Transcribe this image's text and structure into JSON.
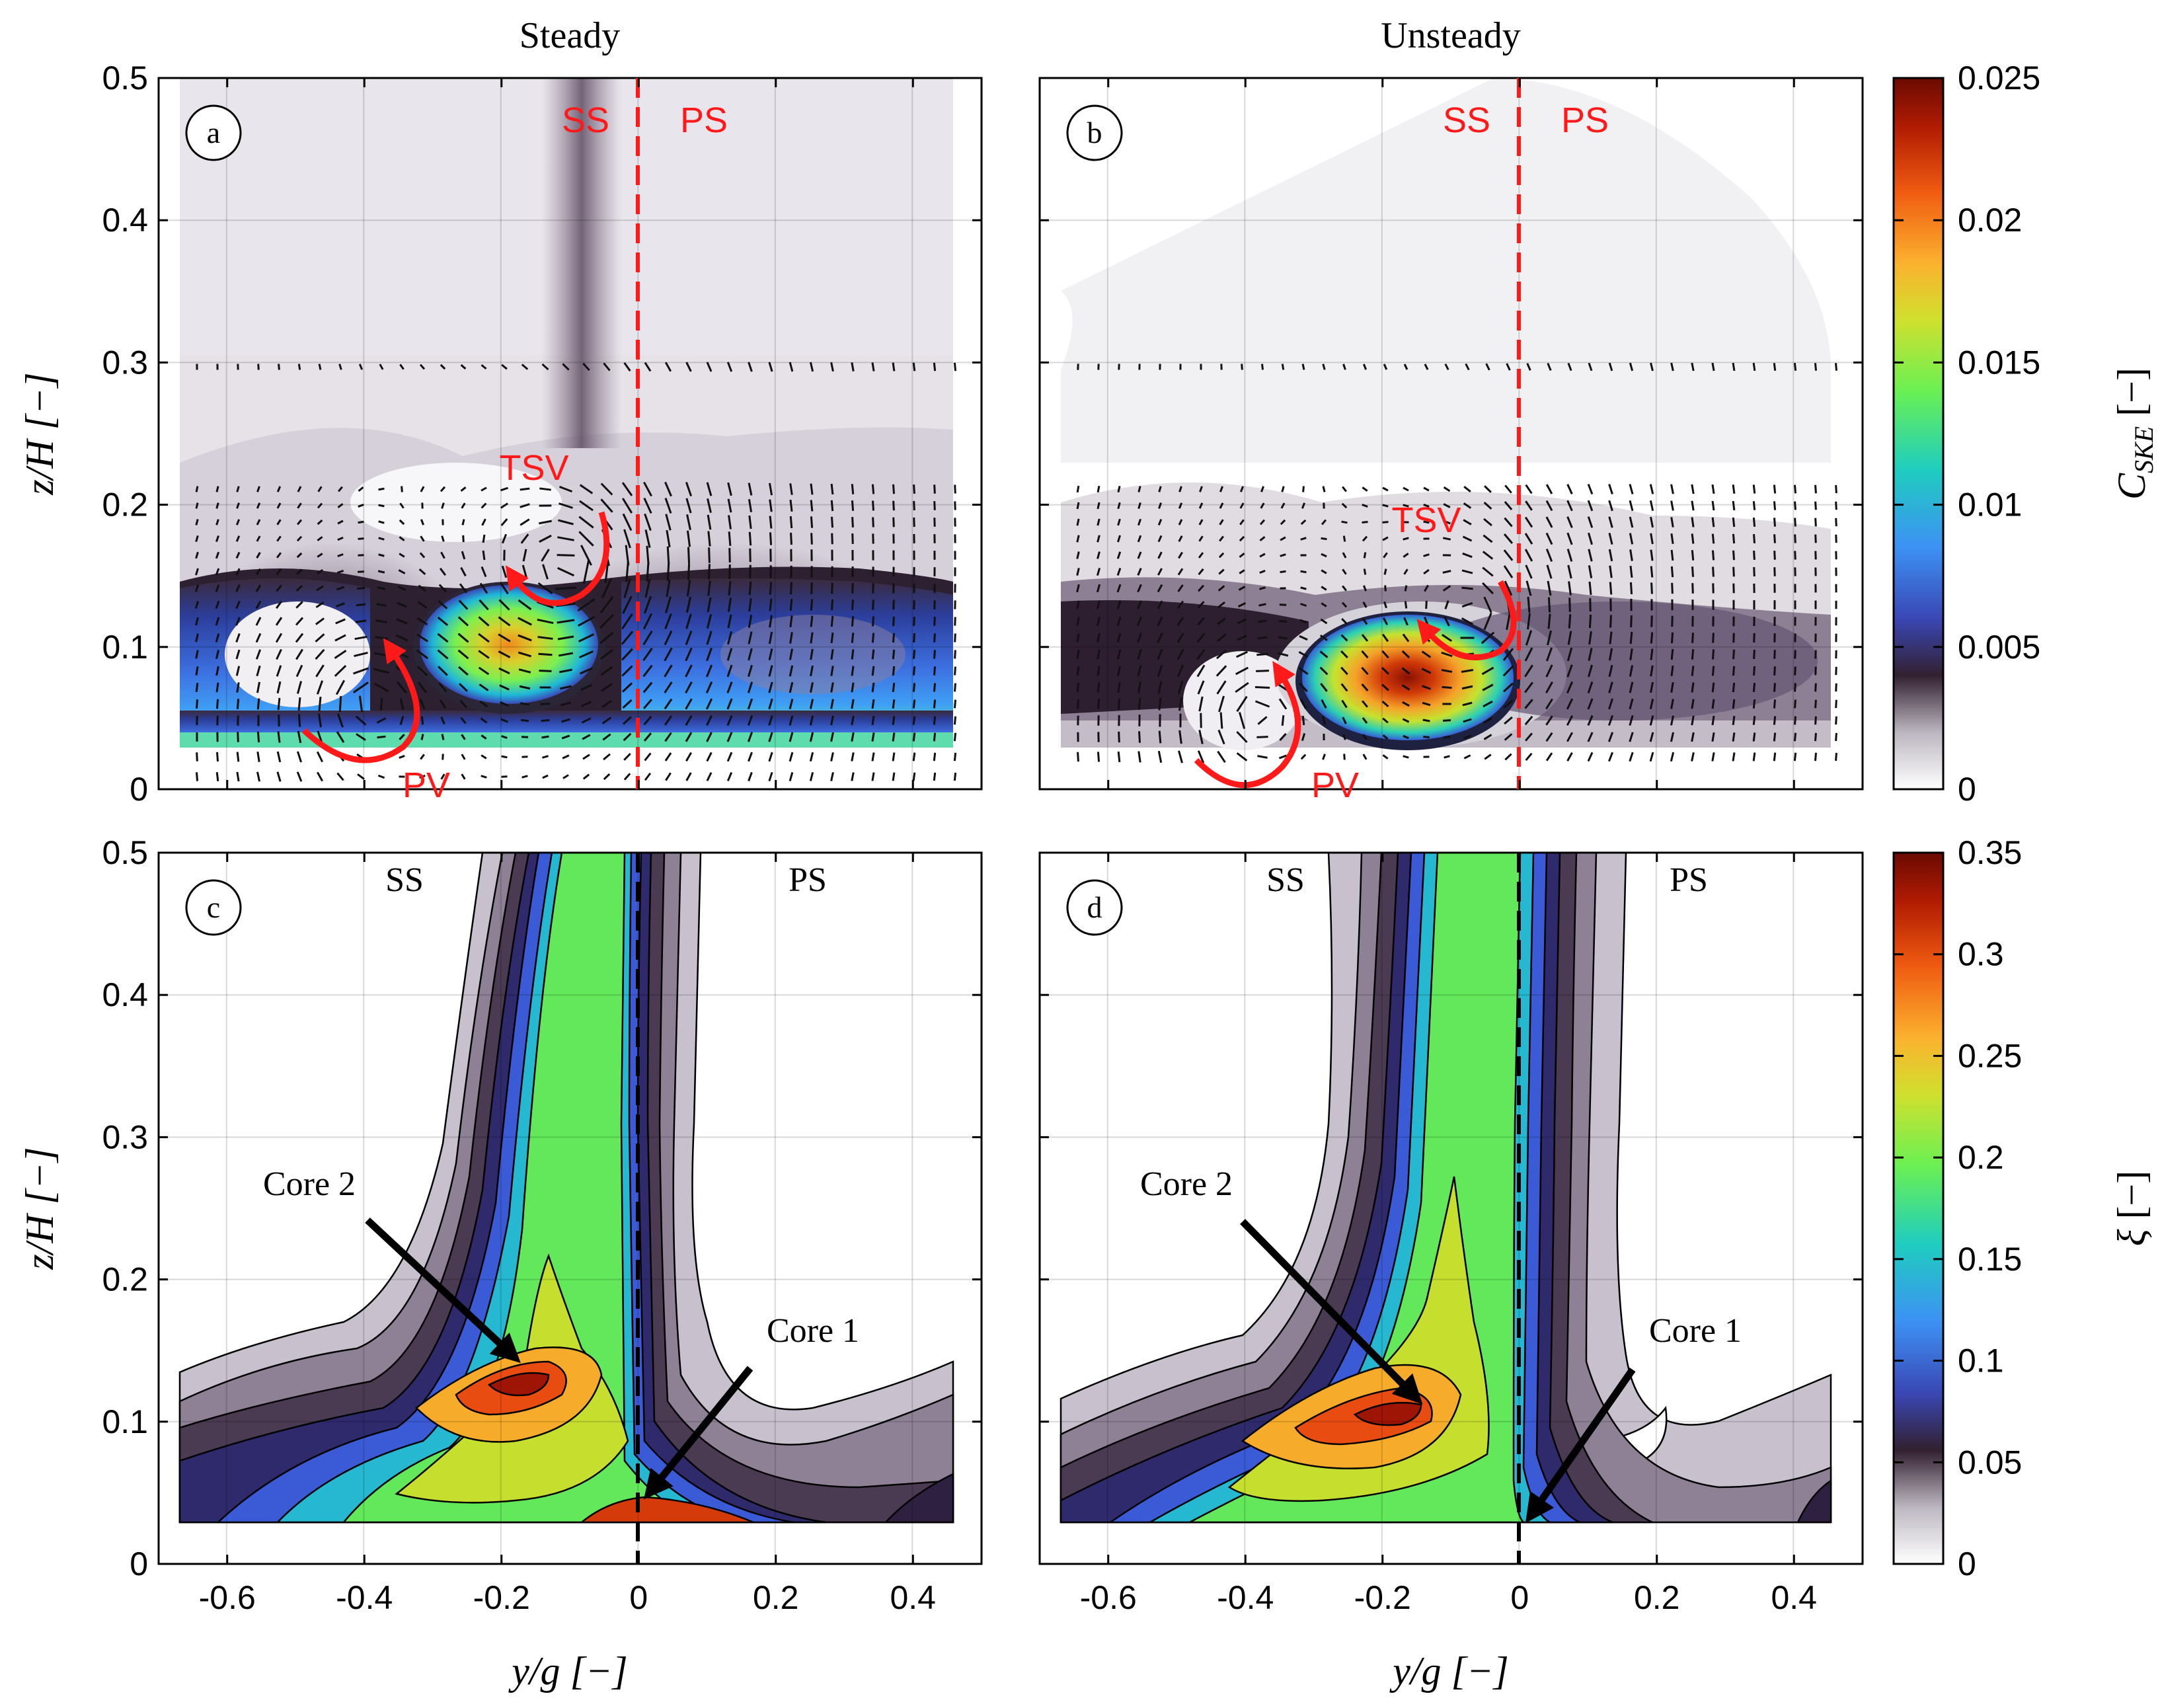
{
  "figure": {
    "col_titles": [
      "Steady",
      "Unsteady"
    ],
    "ylabel": "z/H [−]",
    "xlabel": "y/g [−]",
    "x_ticks": [
      "-0.6",
      "-0.4",
      "-0.2",
      "0",
      "0.2",
      "0.4"
    ],
    "y_ticks": [
      "0",
      "0.1",
      "0.2",
      "0.3",
      "0.4",
      "0.5"
    ]
  },
  "panels": [
    {
      "id": "panel-a",
      "badge": "a",
      "ss": "SS",
      "ps": "PS",
      "tsv": "TSV",
      "pv": "PV"
    },
    {
      "id": "panel-b",
      "badge": "b",
      "ss": "SS",
      "ps": "PS",
      "tsv": "TSV",
      "pv": "PV"
    },
    {
      "id": "panel-c",
      "badge": "c",
      "ss": "SS",
      "ps": "PS",
      "core2": "Core 2",
      "core1": "Core 1"
    },
    {
      "id": "panel-d",
      "badge": "d",
      "ss": "SS",
      "ps": "PS",
      "core2": "Core 2",
      "core1": "Core 1"
    }
  ],
  "colorbars": [
    {
      "label": "C_SKE [−]",
      "label_main": "C",
      "label_sub": "SKE",
      "label_unit": "[−]",
      "ticks": [
        "0",
        "0.005",
        "0.01",
        "0.015",
        "0.02",
        "0.025"
      ]
    },
    {
      "label": "ξ [−]",
      "label_main": "ξ",
      "label_unit": "[−]",
      "ticks": [
        "0",
        "0.05",
        "0.1",
        "0.15",
        "0.2",
        "0.25",
        "0.3",
        "0.35"
      ]
    }
  ],
  "colors": {
    "annotation_red": "#ff1a1a",
    "guide_black": "#000000"
  },
  "chart_data": [
    {
      "type": "heatmap",
      "panel": "a",
      "title": "Steady",
      "xlabel": "y/g [−]",
      "ylabel": "z/H [−]",
      "xlim": [
        -0.7,
        0.5
      ],
      "ylim": [
        0,
        0.5
      ],
      "colorbar": {
        "label": "C_SKE [−]",
        "range": [
          0,
          0.025
        ]
      },
      "features": [
        {
          "name": "peak",
          "y_g": -0.2,
          "z_h": 0.1,
          "value": 0.017
        },
        {
          "name": "blade_wake",
          "y_g": -0.07,
          "z_h_range": [
            0.2,
            0.45
          ],
          "value": 0.003
        }
      ],
      "annotations": [
        "SS",
        "PS",
        "TSV",
        "PV"
      ],
      "divider_y_g": 0
    },
    {
      "type": "heatmap",
      "panel": "b",
      "title": "Unsteady",
      "xlabel": "y/g [−]",
      "ylabel": "z/H [−]",
      "xlim": [
        -0.7,
        0.5
      ],
      "ylim": [
        0,
        0.5
      ],
      "colorbar": {
        "label": "C_SKE [−]",
        "range": [
          0,
          0.025
        ]
      },
      "features": [
        {
          "name": "peak",
          "y_g": -0.12,
          "z_h": 0.075,
          "value": 0.023
        }
      ],
      "annotations": [
        "SS",
        "PS",
        "TSV",
        "PV"
      ],
      "divider_y_g": 0
    },
    {
      "type": "heatmap",
      "panel": "c",
      "xlabel": "y/g [−]",
      "ylabel": "z/H [−]",
      "xlim": [
        -0.7,
        0.5
      ],
      "ylim": [
        0,
        0.5
      ],
      "colorbar": {
        "label": "ξ [−]",
        "range": [
          0,
          0.35
        ]
      },
      "features": [
        {
          "name": "Core 2",
          "y_g": -0.15,
          "z_h": 0.125,
          "value": 0.33
        },
        {
          "name": "Core 1",
          "y_g": 0.0,
          "z_h": 0.035,
          "value": 0.3
        }
      ],
      "annotations": [
        "SS",
        "PS",
        "Core 2",
        "Core 1"
      ],
      "divider_y_g": 0
    },
    {
      "type": "heatmap",
      "panel": "d",
      "xlabel": "y/g [−]",
      "ylabel": "z/H [−]",
      "xlim": [
        -0.7,
        0.5
      ],
      "ylim": [
        0,
        0.5
      ],
      "colorbar": {
        "label": "ξ [−]",
        "range": [
          0,
          0.35
        ]
      },
      "features": [
        {
          "name": "Core 2",
          "y_g": -0.13,
          "z_h": 0.1,
          "value": 0.34
        },
        {
          "name": "Core 1",
          "y_g": 0.01,
          "z_h": 0.03,
          "value": 0.2
        }
      ],
      "annotations": [
        "SS",
        "PS",
        "Core 2",
        "Core 1"
      ],
      "divider_y_g": 0
    }
  ]
}
